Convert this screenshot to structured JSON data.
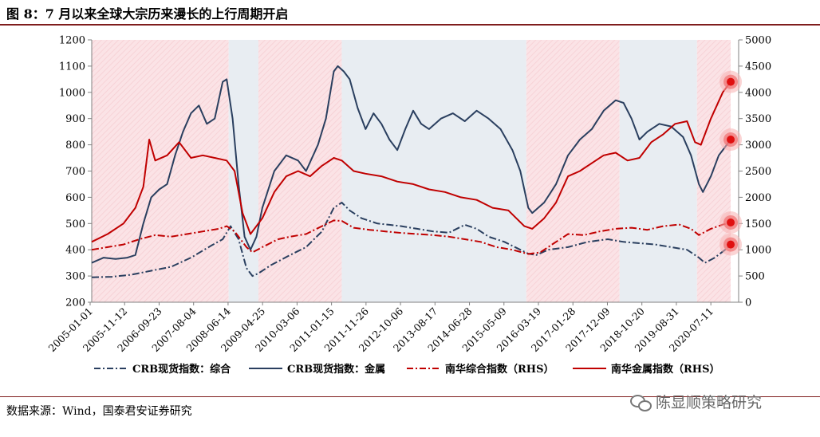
{
  "title": "图 8：7 月以来全球大宗历来漫长的上行周期开启",
  "source": "数据来源：Wind，国泰君安证券研究",
  "watermark": "陈显顺策略研究",
  "colors": {
    "navy": "#2a3f5f",
    "red": "#c00000",
    "pink_band": "#fbe3e6",
    "blue_band": "#e8edf2"
  },
  "chart_data": {
    "type": "line",
    "x_tick_labels": [
      "2005-01-01",
      "2005-11-12",
      "2006-09-23",
      "2007-08-04",
      "2008-06-14",
      "2009-04-25",
      "2010-03-06",
      "2011-01-15",
      "2011-11-26",
      "2012-10-06",
      "2013-08-17",
      "2014-06-28",
      "2015-05-09",
      "2016-03-19",
      "2017-01-28",
      "2017-12-09",
      "2018-10-20",
      "2019-08-31",
      "2020-07-11"
    ],
    "y_left": {
      "min": 200,
      "max": 1200,
      "ticks": [
        200,
        300,
        400,
        500,
        600,
        700,
        800,
        900,
        1000,
        1100,
        1200
      ]
    },
    "y_right": {
      "min": 0,
      "max": 5000,
      "ticks": [
        0,
        500,
        1000,
        1500,
        2000,
        2500,
        3000,
        3500,
        4000,
        4500,
        5000
      ]
    },
    "shaded_periods": [
      {
        "start": 2005.0,
        "end": 2008.45,
        "phase": "up"
      },
      {
        "start": 2008.45,
        "end": 2009.2,
        "phase": "down"
      },
      {
        "start": 2009.2,
        "end": 2011.3,
        "phase": "up"
      },
      {
        "start": 2011.3,
        "end": 2015.95,
        "phase": "down"
      },
      {
        "start": 2015.95,
        "end": 2018.3,
        "phase": "up"
      },
      {
        "start": 2018.3,
        "end": 2020.25,
        "phase": "down"
      },
      {
        "start": 2020.25,
        "end": 2021.1,
        "phase": "up"
      }
    ],
    "series": [
      {
        "name": "CRB现货指数：综合",
        "axis": "left",
        "style": "dashdot",
        "color": "#2a3f5f",
        "points": [
          [
            2005.0,
            295
          ],
          [
            2005.5,
            297
          ],
          [
            2006.0,
            305
          ],
          [
            2006.5,
            320
          ],
          [
            2007.0,
            335
          ],
          [
            2007.5,
            370
          ],
          [
            2008.0,
            415
          ],
          [
            2008.3,
            440
          ],
          [
            2008.5,
            490
          ],
          [
            2008.7,
            440
          ],
          [
            2008.9,
            330
          ],
          [
            2009.05,
            300
          ],
          [
            2009.2,
            310
          ],
          [
            2009.5,
            340
          ],
          [
            2010.0,
            380
          ],
          [
            2010.4,
            410
          ],
          [
            2010.8,
            470
          ],
          [
            2011.1,
            560
          ],
          [
            2011.3,
            580
          ],
          [
            2011.5,
            550
          ],
          [
            2011.8,
            520
          ],
          [
            2012.2,
            500
          ],
          [
            2012.5,
            495
          ],
          [
            2012.8,
            490
          ],
          [
            2013.2,
            480
          ],
          [
            2013.6,
            470
          ],
          [
            2014.0,
            465
          ],
          [
            2014.4,
            495
          ],
          [
            2014.7,
            480
          ],
          [
            2015.0,
            450
          ],
          [
            2015.4,
            430
          ],
          [
            2015.8,
            400
          ],
          [
            2016.0,
            385
          ],
          [
            2016.2,
            380
          ],
          [
            2016.5,
            400
          ],
          [
            2017.0,
            410
          ],
          [
            2017.5,
            430
          ],
          [
            2018.0,
            440
          ],
          [
            2018.4,
            430
          ],
          [
            2018.8,
            425
          ],
          [
            2019.2,
            420
          ],
          [
            2019.6,
            410
          ],
          [
            2020.0,
            400
          ],
          [
            2020.3,
            370
          ],
          [
            2020.45,
            350
          ],
          [
            2020.7,
            370
          ],
          [
            2021.0,
            405
          ],
          [
            2021.1,
            420
          ]
        ]
      },
      {
        "name": "CRB现货指数：金属",
        "axis": "left",
        "style": "solid",
        "color": "#2a3f5f",
        "points": [
          [
            2005.0,
            350
          ],
          [
            2005.3,
            370
          ],
          [
            2005.6,
            365
          ],
          [
            2005.9,
            370
          ],
          [
            2006.1,
            380
          ],
          [
            2006.3,
            500
          ],
          [
            2006.5,
            600
          ],
          [
            2006.7,
            630
          ],
          [
            2006.9,
            650
          ],
          [
            2007.1,
            760
          ],
          [
            2007.3,
            850
          ],
          [
            2007.5,
            920
          ],
          [
            2007.7,
            950
          ],
          [
            2007.9,
            880
          ],
          [
            2008.1,
            900
          ],
          [
            2008.3,
            1040
          ],
          [
            2008.4,
            1050
          ],
          [
            2008.55,
            900
          ],
          [
            2008.7,
            650
          ],
          [
            2008.85,
            450
          ],
          [
            2009.0,
            400
          ],
          [
            2009.15,
            450
          ],
          [
            2009.3,
            560
          ],
          [
            2009.6,
            700
          ],
          [
            2009.9,
            760
          ],
          [
            2010.2,
            740
          ],
          [
            2010.4,
            700
          ],
          [
            2010.7,
            800
          ],
          [
            2010.9,
            900
          ],
          [
            2011.1,
            1080
          ],
          [
            2011.2,
            1100
          ],
          [
            2011.35,
            1080
          ],
          [
            2011.5,
            1050
          ],
          [
            2011.7,
            940
          ],
          [
            2011.9,
            860
          ],
          [
            2012.1,
            920
          ],
          [
            2012.3,
            880
          ],
          [
            2012.5,
            820
          ],
          [
            2012.7,
            780
          ],
          [
            2012.9,
            860
          ],
          [
            2013.1,
            930
          ],
          [
            2013.3,
            880
          ],
          [
            2013.5,
            860
          ],
          [
            2013.8,
            900
          ],
          [
            2014.1,
            920
          ],
          [
            2014.4,
            890
          ],
          [
            2014.7,
            930
          ],
          [
            2015.0,
            900
          ],
          [
            2015.3,
            860
          ],
          [
            2015.6,
            780
          ],
          [
            2015.8,
            700
          ],
          [
            2016.0,
            560
          ],
          [
            2016.1,
            540
          ],
          [
            2016.4,
            580
          ],
          [
            2016.7,
            650
          ],
          [
            2017.0,
            760
          ],
          [
            2017.3,
            820
          ],
          [
            2017.6,
            860
          ],
          [
            2017.9,
            930
          ],
          [
            2018.2,
            970
          ],
          [
            2018.4,
            960
          ],
          [
            2018.6,
            900
          ],
          [
            2018.8,
            820
          ],
          [
            2019.0,
            850
          ],
          [
            2019.3,
            880
          ],
          [
            2019.6,
            870
          ],
          [
            2019.9,
            830
          ],
          [
            2020.1,
            760
          ],
          [
            2020.3,
            650
          ],
          [
            2020.4,
            620
          ],
          [
            2020.6,
            680
          ],
          [
            2020.8,
            760
          ],
          [
            2021.0,
            800
          ],
          [
            2021.1,
            820
          ]
        ]
      },
      {
        "name": "南华综合指数（RHS）",
        "axis": "right",
        "style": "dashdot",
        "color": "#c00000",
        "points": [
          [
            2005.0,
            1000
          ],
          [
            2005.4,
            1050
          ],
          [
            2005.8,
            1100
          ],
          [
            2006.2,
            1200
          ],
          [
            2006.6,
            1280
          ],
          [
            2007.0,
            1250
          ],
          [
            2007.4,
            1300
          ],
          [
            2007.8,
            1350
          ],
          [
            2008.2,
            1400
          ],
          [
            2008.4,
            1450
          ],
          [
            2008.6,
            1350
          ],
          [
            2008.9,
            1050
          ],
          [
            2009.05,
            950
          ],
          [
            2009.3,
            1050
          ],
          [
            2009.7,
            1200
          ],
          [
            2010.0,
            1250
          ],
          [
            2010.4,
            1300
          ],
          [
            2010.8,
            1450
          ],
          [
            2011.1,
            1560
          ],
          [
            2011.3,
            1550
          ],
          [
            2011.6,
            1420
          ],
          [
            2012.0,
            1380
          ],
          [
            2012.4,
            1350
          ],
          [
            2012.8,
            1320
          ],
          [
            2013.2,
            1300
          ],
          [
            2013.6,
            1280
          ],
          [
            2014.0,
            1250
          ],
          [
            2014.4,
            1200
          ],
          [
            2014.8,
            1150
          ],
          [
            2015.2,
            1050
          ],
          [
            2015.6,
            1000
          ],
          [
            2016.0,
            920
          ],
          [
            2016.3,
            950
          ],
          [
            2016.7,
            1150
          ],
          [
            2017.0,
            1300
          ],
          [
            2017.4,
            1280
          ],
          [
            2017.8,
            1350
          ],
          [
            2018.2,
            1400
          ],
          [
            2018.6,
            1420
          ],
          [
            2019.0,
            1380
          ],
          [
            2019.4,
            1450
          ],
          [
            2019.8,
            1480
          ],
          [
            2020.1,
            1400
          ],
          [
            2020.3,
            1280
          ],
          [
            2020.6,
            1400
          ],
          [
            2020.9,
            1480
          ],
          [
            2021.1,
            1520
          ]
        ]
      },
      {
        "name": "南华金属指数（RHS）",
        "axis": "right",
        "style": "solid",
        "color": "#c00000",
        "points": [
          [
            2005.0,
            1150
          ],
          [
            2005.4,
            1300
          ],
          [
            2005.8,
            1500
          ],
          [
            2006.1,
            1800
          ],
          [
            2006.3,
            2200
          ],
          [
            2006.45,
            3100
          ],
          [
            2006.6,
            2700
          ],
          [
            2006.9,
            2800
          ],
          [
            2007.2,
            3050
          ],
          [
            2007.5,
            2750
          ],
          [
            2007.8,
            2800
          ],
          [
            2008.1,
            2750
          ],
          [
            2008.4,
            2700
          ],
          [
            2008.6,
            2500
          ],
          [
            2008.8,
            1700
          ],
          [
            2009.0,
            1300
          ],
          [
            2009.3,
            1600
          ],
          [
            2009.6,
            2100
          ],
          [
            2009.9,
            2400
          ],
          [
            2010.2,
            2500
          ],
          [
            2010.5,
            2400
          ],
          [
            2010.8,
            2600
          ],
          [
            2011.1,
            2750
          ],
          [
            2011.3,
            2700
          ],
          [
            2011.6,
            2500
          ],
          [
            2011.9,
            2450
          ],
          [
            2012.3,
            2400
          ],
          [
            2012.7,
            2300
          ],
          [
            2013.1,
            2250
          ],
          [
            2013.5,
            2150
          ],
          [
            2013.9,
            2100
          ],
          [
            2014.3,
            2000
          ],
          [
            2014.7,
            1950
          ],
          [
            2015.1,
            1800
          ],
          [
            2015.5,
            1750
          ],
          [
            2015.9,
            1450
          ],
          [
            2016.1,
            1400
          ],
          [
            2016.4,
            1600
          ],
          [
            2016.7,
            1900
          ],
          [
            2017.0,
            2400
          ],
          [
            2017.3,
            2500
          ],
          [
            2017.6,
            2650
          ],
          [
            2017.9,
            2800
          ],
          [
            2018.2,
            2850
          ],
          [
            2018.5,
            2700
          ],
          [
            2018.8,
            2750
          ],
          [
            2019.1,
            3050
          ],
          [
            2019.4,
            3200
          ],
          [
            2019.7,
            3400
          ],
          [
            2020.0,
            3450
          ],
          [
            2020.2,
            3050
          ],
          [
            2020.35,
            3000
          ],
          [
            2020.6,
            3500
          ],
          [
            2020.9,
            4000
          ],
          [
            2021.1,
            4200
          ]
        ]
      }
    ],
    "highlight_points": [
      {
        "series": 1,
        "x": 2021.1,
        "y": 820
      },
      {
        "series": 0,
        "x": 2021.1,
        "y": 420
      },
      {
        "series": 3,
        "x": 2021.1,
        "y": 4200
      },
      {
        "series": 2,
        "x": 2021.1,
        "y": 1520
      }
    ],
    "legend": [
      {
        "label": "CRB现货指数：综合",
        "style": "dashdot",
        "color": "#2a3f5f"
      },
      {
        "label": "CRB现货指数：金属",
        "style": "solid",
        "color": "#2a3f5f"
      },
      {
        "label": "南华综合指数（RHS）",
        "style": "dashdot",
        "color": "#c00000"
      },
      {
        "label": "南华金属指数（RHS）",
        "style": "solid",
        "color": "#c00000"
      }
    ],
    "legend_position": "bottom",
    "grid": false
  }
}
